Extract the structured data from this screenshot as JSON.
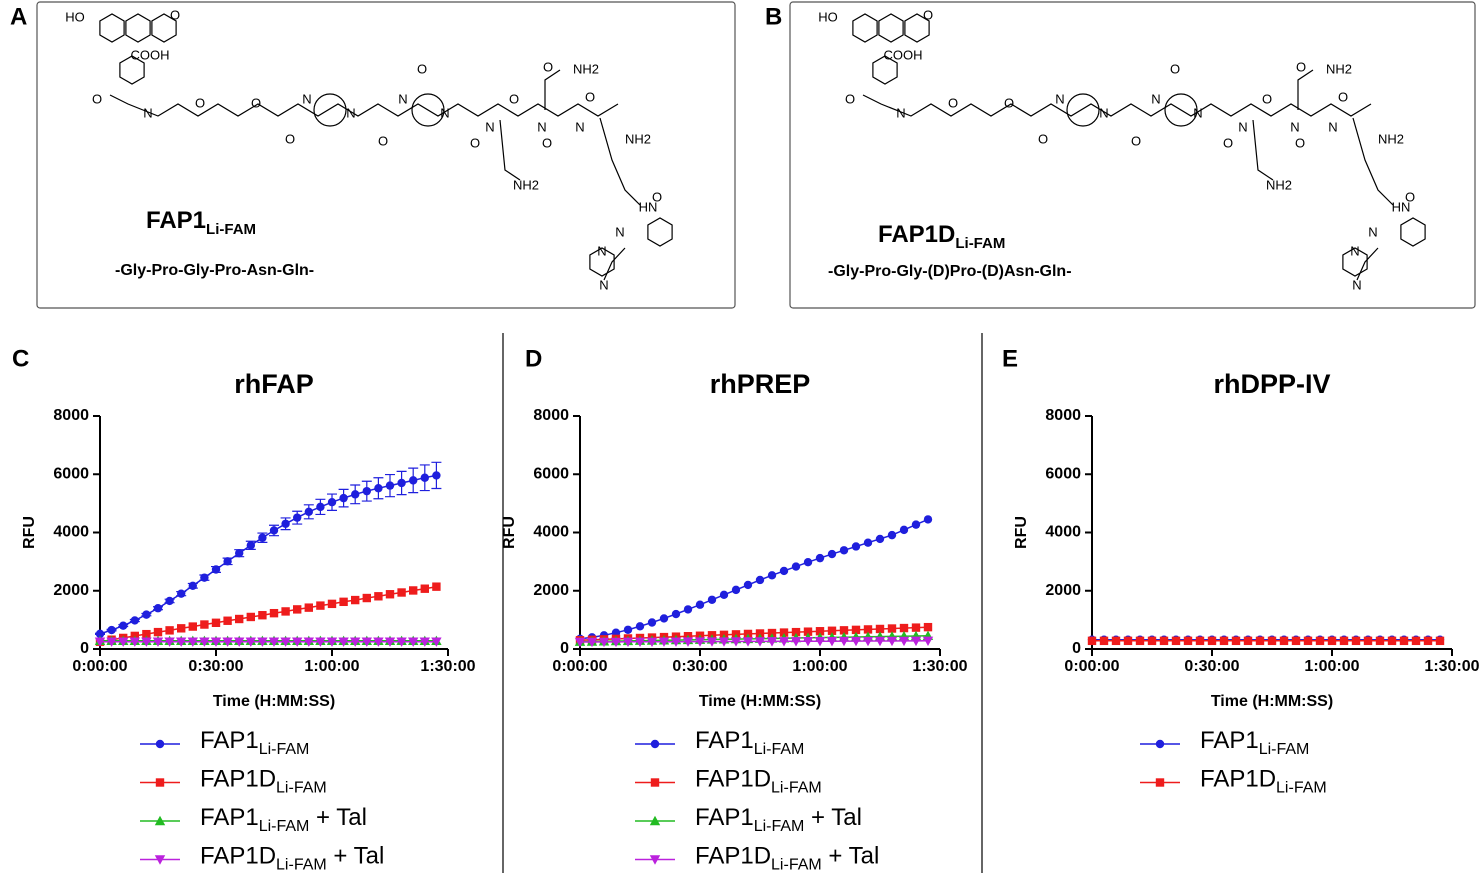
{
  "structures": [
    {
      "panel": "A",
      "name": "FAP1",
      "sub": "Li-FAM",
      "sequence": "-Gly-Pro-Gly-Pro-Asn-Gln-",
      "atoms": [
        "HO",
        "O",
        "COOH",
        "O",
        "N",
        "O",
        "O",
        "O",
        "N",
        "N",
        "O",
        "N",
        "O",
        "N",
        "O",
        "N",
        "O",
        "O",
        "NH2",
        "N",
        "O",
        "NH2",
        "N",
        "O",
        "NH2",
        "O",
        "HN",
        "N",
        "N",
        "N"
      ]
    },
    {
      "panel": "B",
      "name": "FAP1D",
      "sub": "Li-FAM",
      "sequence": "-Gly-Pro-Gly-(D)Pro-(D)Asn-Gln-",
      "atoms": [
        "HO",
        "O",
        "COOH",
        "O",
        "N",
        "O",
        "O",
        "O",
        "N",
        "N",
        "O",
        "N",
        "O",
        "N",
        "O",
        "N",
        "O",
        "O",
        "NH2",
        "N",
        "O",
        "NH2",
        "N",
        "O",
        "NH2",
        "O",
        "HN",
        "N",
        "N",
        "N"
      ]
    }
  ],
  "chart_data": [
    {
      "type": "line",
      "panel": "C",
      "title": "rhFAP",
      "xlabel": "Time (H:MM:SS)",
      "ylabel": "RFU",
      "x": [
        0,
        180,
        360,
        540,
        720,
        900,
        1080,
        1260,
        1440,
        1620,
        1800,
        1980,
        2160,
        2340,
        2520,
        2700,
        2880,
        3060,
        3240,
        3420,
        3600,
        3780,
        3960,
        4140,
        4320,
        4500,
        4680,
        4860,
        5040,
        5220
      ],
      "xlim": [
        0,
        5400
      ],
      "xticks": [
        {
          "value": 0,
          "label": "0:00:00"
        },
        {
          "value": 1800,
          "label": "0:30:00"
        },
        {
          "value": 3600,
          "label": "1:00:00"
        },
        {
          "value": 5400,
          "label": "1:30:00"
        }
      ],
      "ylim": [
        0,
        8000
      ],
      "yticks": [
        0,
        2000,
        4000,
        6000,
        8000
      ],
      "series": [
        {
          "name": "FAP1",
          "name_sub": "Li-FAM",
          "color": "#1f1fdd",
          "marker": "circle",
          "values": [
            520,
            650,
            800,
            980,
            1180,
            1400,
            1650,
            1900,
            2170,
            2450,
            2730,
            3010,
            3290,
            3560,
            3820,
            4070,
            4300,
            4510,
            4710,
            4880,
            5040,
            5180,
            5310,
            5420,
            5520,
            5610,
            5700,
            5790,
            5880,
            5960
          ],
          "errors": [
            20,
            25,
            30,
            35,
            40,
            50,
            60,
            70,
            80,
            90,
            100,
            110,
            120,
            140,
            160,
            180,
            200,
            220,
            240,
            260,
            280,
            300,
            320,
            340,
            360,
            380,
            400,
            420,
            440,
            450
          ]
        },
        {
          "name": "FAP1D",
          "name_sub": "Li-FAM",
          "color": "#ee1c1c",
          "marker": "square",
          "values": [
            250,
            320,
            380,
            450,
            510,
            580,
            640,
            710,
            770,
            840,
            900,
            970,
            1030,
            1100,
            1160,
            1230,
            1290,
            1360,
            1420,
            1490,
            1550,
            1620,
            1680,
            1750,
            1810,
            1880,
            1940,
            2010,
            2070,
            2140
          ]
        },
        {
          "name": "FAP1",
          "name_sub": "Li-FAM",
          "name_suffix": " + Tal",
          "color": "#22bb22",
          "marker": "triangle-up",
          "values": [
            280,
            280,
            280,
            280,
            280,
            280,
            280,
            280,
            280,
            280,
            280,
            280,
            280,
            280,
            280,
            280,
            280,
            280,
            280,
            280,
            280,
            280,
            280,
            280,
            280,
            280,
            280,
            280,
            280,
            280
          ]
        },
        {
          "name": "FAP1D",
          "name_sub": "Li-FAM",
          "name_suffix": " + Tal",
          "color": "#bb22dd",
          "marker": "triangle-down",
          "values": [
            250,
            250,
            250,
            250,
            250,
            250,
            250,
            250,
            250,
            250,
            250,
            250,
            250,
            250,
            250,
            250,
            250,
            250,
            250,
            250,
            250,
            250,
            250,
            250,
            250,
            250,
            250,
            250,
            250,
            250
          ]
        }
      ]
    },
    {
      "type": "line",
      "panel": "D",
      "title": "rhPREP",
      "xlabel": "Time (H:MM:SS)",
      "ylabel": "RFU",
      "x": [
        0,
        180,
        360,
        540,
        720,
        900,
        1080,
        1260,
        1440,
        1620,
        1800,
        1980,
        2160,
        2340,
        2520,
        2700,
        2880,
        3060,
        3240,
        3420,
        3600,
        3780,
        3960,
        4140,
        4320,
        4500,
        4680,
        4860,
        5040,
        5220
      ],
      "xlim": [
        0,
        5400
      ],
      "xticks": [
        {
          "value": 0,
          "label": "0:00:00"
        },
        {
          "value": 1800,
          "label": "0:30:00"
        },
        {
          "value": 3600,
          "label": "1:00:00"
        },
        {
          "value": 5400,
          "label": "1:30:00"
        }
      ],
      "ylim": [
        0,
        8000
      ],
      "yticks": [
        0,
        2000,
        4000,
        6000,
        8000
      ],
      "series": [
        {
          "name": "FAP1",
          "name_sub": "Li-FAM",
          "color": "#1f1fdd",
          "marker": "circle",
          "values": [
            350,
            400,
            470,
            560,
            660,
            780,
            910,
            1050,
            1200,
            1360,
            1520,
            1690,
            1860,
            2030,
            2200,
            2370,
            2530,
            2680,
            2830,
            2980,
            3120,
            3260,
            3390,
            3520,
            3650,
            3780,
            3910,
            4090,
            4270,
            4450
          ]
        },
        {
          "name": "FAP1D",
          "name_sub": "Li-FAM",
          "color": "#ee1c1c",
          "marker": "square",
          "values": [
            300,
            316,
            331,
            347,
            362,
            378,
            393,
            409,
            424,
            440,
            455,
            471,
            486,
            502,
            517,
            533,
            548,
            564,
            579,
            595,
            610,
            626,
            641,
            657,
            672,
            688,
            703,
            719,
            734,
            750
          ]
        },
        {
          "name": "FAP1",
          "name_sub": "Li-FAM",
          "name_suffix": " + Tal",
          "color": "#22bb22",
          "marker": "triangle-up",
          "values": [
            250,
            257,
            264,
            271,
            278,
            285,
            292,
            299,
            306,
            313,
            320,
            327,
            334,
            341,
            348,
            355,
            362,
            369,
            376,
            383,
            390,
            397,
            404,
            411,
            418,
            425,
            432,
            439,
            446,
            453
          ]
        },
        {
          "name": "FAP1D",
          "name_sub": "Li-FAM",
          "name_suffix": " + Tal",
          "color": "#bb22dd",
          "marker": "triangle-down",
          "values": [
            240,
            241,
            243,
            244,
            246,
            247,
            248,
            250,
            251,
            253,
            254,
            255,
            257,
            258,
            260,
            261,
            262,
            264,
            265,
            267,
            268,
            269,
            271,
            272,
            274,
            275,
            276,
            278,
            279,
            281
          ]
        }
      ]
    },
    {
      "type": "line",
      "panel": "E",
      "title": "rhDPP-IV",
      "xlabel": "Time (H:MM:SS)",
      "ylabel": "RFU",
      "x": [
        0,
        180,
        360,
        540,
        720,
        900,
        1080,
        1260,
        1440,
        1620,
        1800,
        1980,
        2160,
        2340,
        2520,
        2700,
        2880,
        3060,
        3240,
        3420,
        3600,
        3780,
        3960,
        4140,
        4320,
        4500,
        4680,
        4860,
        5040,
        5220
      ],
      "xlim": [
        0,
        5400
      ],
      "xticks": [
        {
          "value": 0,
          "label": "0:00:00"
        },
        {
          "value": 1800,
          "label": "0:30:00"
        },
        {
          "value": 3600,
          "label": "1:00:00"
        },
        {
          "value": 5400,
          "label": "1:30:00"
        }
      ],
      "ylim": [
        0,
        8000
      ],
      "yticks": [
        0,
        2000,
        4000,
        6000,
        8000
      ],
      "series": [
        {
          "name": "FAP1",
          "name_sub": "Li-FAM",
          "color": "#1f1fdd",
          "marker": "circle",
          "values": [
            320,
            320,
            320,
            320,
            320,
            320,
            320,
            320,
            320,
            320,
            320,
            320,
            320,
            320,
            320,
            320,
            320,
            320,
            320,
            320,
            320,
            320,
            320,
            320,
            320,
            320,
            320,
            320,
            320,
            320
          ]
        },
        {
          "name": "FAP1D",
          "name_sub": "Li-FAM",
          "color": "#ee1c1c",
          "marker": "square",
          "values": [
            280,
            280,
            280,
            280,
            280,
            280,
            280,
            280,
            280,
            280,
            280,
            280,
            280,
            280,
            280,
            280,
            280,
            280,
            280,
            280,
            280,
            280,
            280,
            280,
            280,
            280,
            280,
            280,
            280,
            280
          ]
        }
      ]
    }
  ]
}
